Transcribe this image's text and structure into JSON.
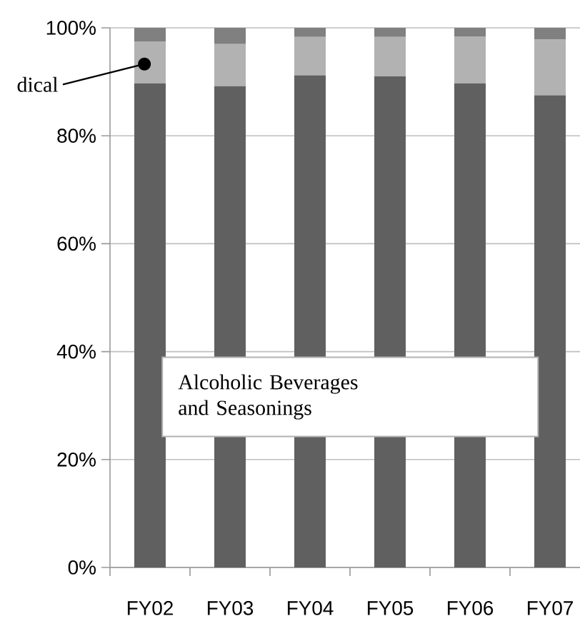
{
  "chart_data": {
    "type": "bar",
    "stacked": true,
    "categories": [
      "FY02",
      "FY03",
      "FY04",
      "FY05",
      "FY06",
      "FY07"
    ],
    "series": [
      {
        "color": "#606060",
        "values": [
          89.7,
          89.2,
          91.2,
          91.0,
          89.7,
          87.5
        ]
      },
      {
        "color": "#b2b2b2",
        "values": [
          7.8,
          7.8,
          7.1,
          7.3,
          8.7,
          10.3
        ]
      },
      {
        "color": "#808080",
        "values": [
          2.5,
          3.0,
          1.7,
          1.7,
          1.6,
          2.2
        ]
      }
    ],
    "ylim": [
      0,
      100
    ],
    "yticks": [
      {
        "value": 0,
        "label": "0%"
      },
      {
        "value": 20,
        "label": "20%"
      },
      {
        "value": 40,
        "label": "40%"
      },
      {
        "value": 60,
        "label": "60%"
      },
      {
        "value": 80,
        "label": "80%"
      },
      {
        "value": 100,
        "label": "100%"
      }
    ],
    "grid": "y",
    "annotations": [
      "dical",
      "Alcoholic Beverages and Seasonings"
    ]
  }
}
